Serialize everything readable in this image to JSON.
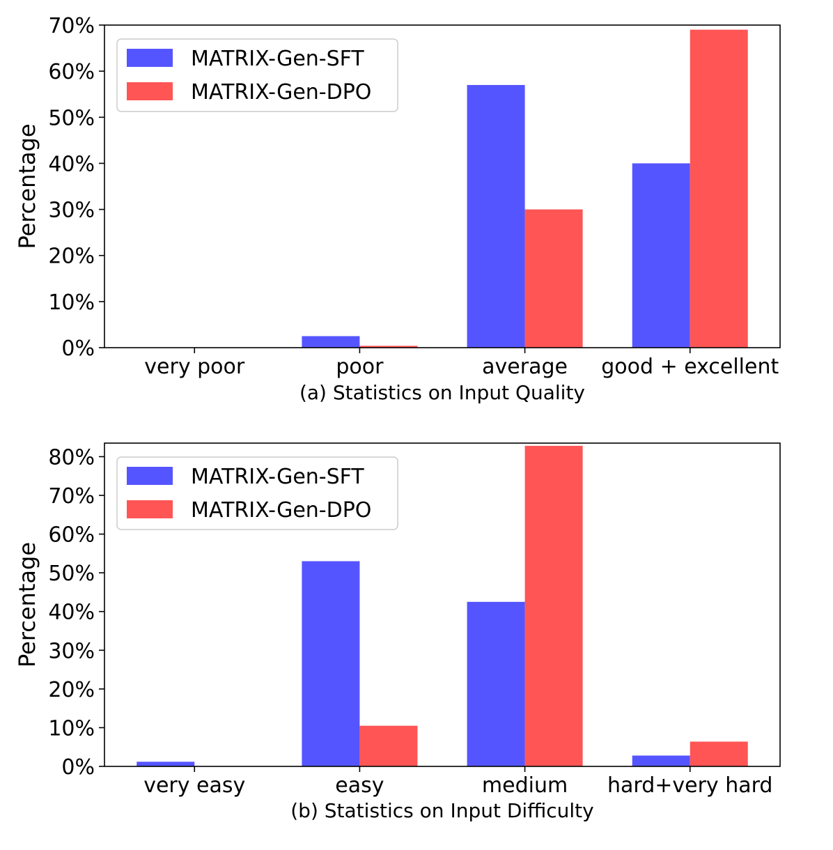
{
  "colors": {
    "sft": "#5555ff",
    "dpo": "#ff5555"
  },
  "chart_data": [
    {
      "type": "bar",
      "caption": "(a) Statistics on Input Quality",
      "ylabel": "Percentage",
      "ylim": [
        0,
        0.7
      ],
      "yticks": [
        "0%",
        "10%",
        "20%",
        "30%",
        "40%",
        "50%",
        "60%",
        "70%"
      ],
      "ytick_values": [
        0,
        0.1,
        0.2,
        0.3,
        0.4,
        0.5,
        0.6,
        0.7
      ],
      "categories": [
        "very poor",
        "poor",
        "average",
        "good + excellent"
      ],
      "legend_position": "upper-left",
      "series": [
        {
          "name": "MATRIX-Gen-SFT",
          "color": "#5555ff",
          "values": [
            0.0,
            0.025,
            0.57,
            0.4
          ]
        },
        {
          "name": "MATRIX-Gen-DPO",
          "color": "#ff5555",
          "values": [
            0.0,
            0.004,
            0.3,
            0.69
          ]
        }
      ]
    },
    {
      "type": "bar",
      "caption": "(b) Statistics on Input Difficulty",
      "ylabel": "Percentage",
      "ylim": [
        0,
        0.835
      ],
      "yticks": [
        "0%",
        "10%",
        "20%",
        "30%",
        "40%",
        "50%",
        "60%",
        "70%",
        "80%"
      ],
      "ytick_values": [
        0,
        0.1,
        0.2,
        0.3,
        0.4,
        0.5,
        0.6,
        0.7,
        0.8
      ],
      "categories": [
        "very easy",
        "easy",
        "medium",
        "hard+very hard"
      ],
      "legend_position": "upper-left",
      "series": [
        {
          "name": "MATRIX-Gen-SFT",
          "color": "#5555ff",
          "values": [
            0.012,
            0.53,
            0.425,
            0.028
          ]
        },
        {
          "name": "MATRIX-Gen-DPO",
          "color": "#ff5555",
          "values": [
            0.0,
            0.105,
            0.828,
            0.064
          ]
        }
      ]
    }
  ]
}
